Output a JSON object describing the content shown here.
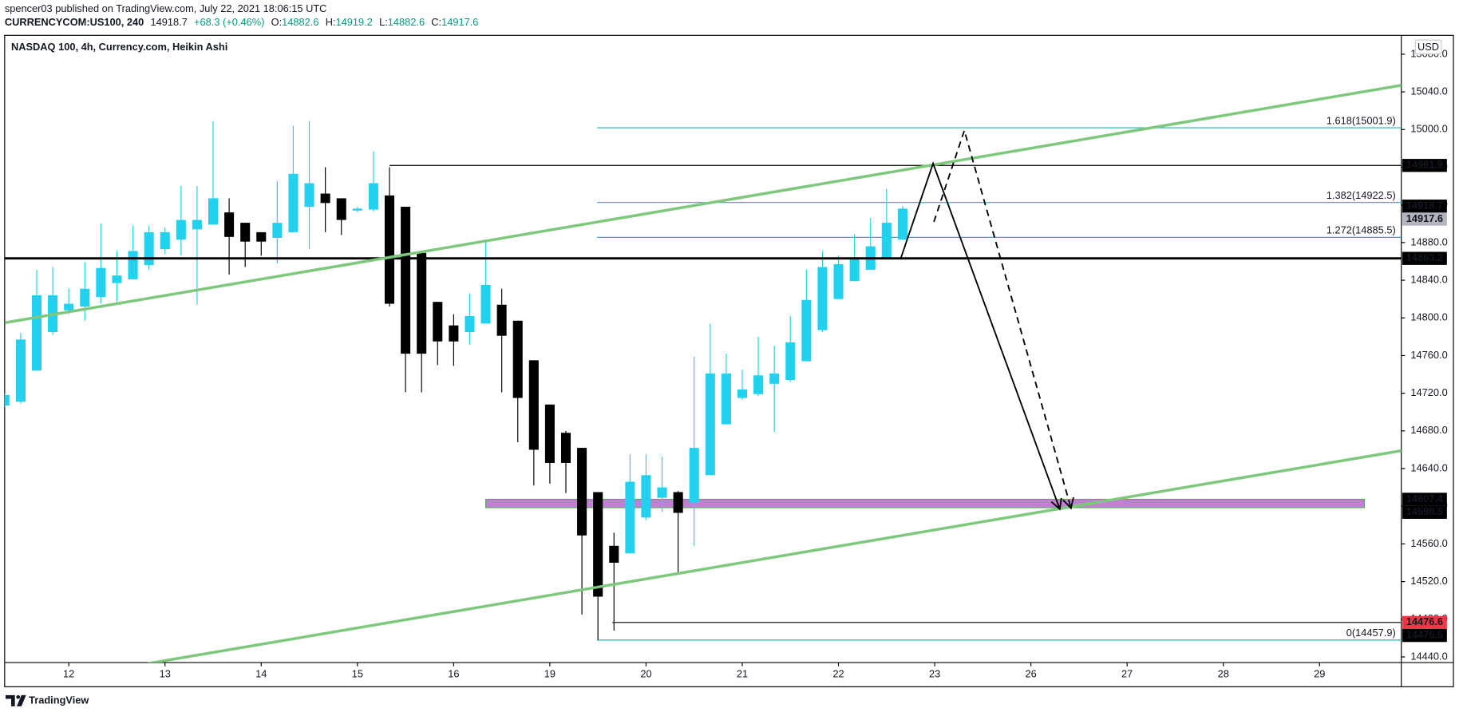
{
  "header": {
    "publisher": "spencer03 published on TradingView.com, July 22, 2021 18:06:15 UTC",
    "symbol": "CURRENCYCOM:US100, 240",
    "last": "14918.7",
    "change": "+68.3 (+0.46%)",
    "o_label": "O:",
    "o": "14882.6",
    "h_label": "H:",
    "h": "14919.2",
    "l_label": "L:",
    "l": "14882.6",
    "c_label": "C:",
    "c": "14917.6"
  },
  "chart_data": {
    "type": "candlestick",
    "title": "NASDAQ 100, 4h, Currency.com, Heikin Ashi",
    "currency": "USD",
    "open": [
      14707,
      14711,
      14744,
      14785,
      14808,
      14812,
      14822,
      14837,
      14841,
      14856,
      14873,
      14883,
      14894,
      14899,
      14912,
      14901,
      14891,
      14885,
      14891,
      14918,
      14932,
      14927,
      14914,
      14915,
      14930,
      14918,
      14869,
      14817,
      14792,
      14785,
      14794,
      14814,
      14797,
      14755,
      14708,
      14678,
      14662,
      14615,
      14558,
      14550,
      14588,
      14609,
      14615,
      14604,
      14633,
      14687,
      14715,
      14719,
      14730,
      14734,
      14754,
      14787,
      14820,
      14839,
      14851,
      14863,
      14883
    ],
    "high": [
      14720,
      14784,
      14851,
      14854,
      14831,
      14859,
      14900,
      14871,
      14898,
      14898,
      14896,
      14940,
      14940,
      15009,
      14927,
      14901,
      14891,
      14945,
      15004,
      15009,
      14960,
      14927,
      14918,
      14977,
      14960,
      14918,
      14869,
      14817,
      14804,
      14826,
      14883,
      14831,
      14797,
      14755,
      14708,
      14680,
      14662,
      14615,
      14572,
      14655,
      14655,
      14653,
      14616,
      14759,
      14794,
      14762,
      14745,
      14780,
      14770,
      14802,
      14851,
      14871,
      14866,
      14889,
      14906,
      14937,
      14919
    ],
    "low": [
      14705,
      14709,
      14744,
      14782,
      14804,
      14797,
      14815,
      14817,
      14841,
      14851,
      14868,
      14866,
      14814,
      14899,
      14846,
      14854,
      14866,
      14858,
      14891,
      14873,
      14891,
      14888,
      14912,
      14913,
      14812,
      14721,
      14721,
      14750,
      14749,
      14772,
      14794,
      14721,
      14668,
      14622,
      14624,
      14614,
      14485,
      14458,
      14468,
      14550,
      14585,
      14594,
      14528,
      14558,
      14633,
      14687,
      14713,
      14717,
      14679,
      14732,
      14754,
      14785,
      14820,
      14840,
      14851,
      14863,
      14883
    ],
    "close": [
      14718,
      14777,
      14824,
      14824,
      14815,
      14831,
      14853,
      14845,
      14871,
      14891,
      14891,
      14904,
      14904,
      14927,
      14886,
      14881,
      14881,
      14901,
      14953,
      14943,
      14922,
      14904,
      14916,
      14943,
      14815,
      14762,
      14762,
      14775,
      14775,
      14802,
      14835,
      14781,
      14715,
      14660,
      14646,
      14646,
      14569,
      14504,
      14540,
      14626,
      14633,
      14620,
      14593,
      14662,
      14741,
      14741,
      14724,
      14739,
      14741,
      14774,
      14819,
      14854,
      14857,
      14863,
      14876,
      14901,
      14916
    ],
    "up_color": "#22d1ee",
    "down_color": "#000000",
    "xlim": [
      0,
      87.1
    ],
    "xticks": [
      {
        "value": 4,
        "label": "12"
      },
      {
        "value": 10,
        "label": "13"
      },
      {
        "value": 16,
        "label": "14"
      },
      {
        "value": 22,
        "label": "15"
      },
      {
        "value": 28,
        "label": "16"
      },
      {
        "value": 34,
        "label": "19"
      },
      {
        "value": 40,
        "label": "20"
      },
      {
        "value": 46,
        "label": "21"
      },
      {
        "value": 52,
        "label": "22"
      },
      {
        "value": 58,
        "label": "23"
      },
      {
        "value": 64,
        "label": "26"
      },
      {
        "value": 70,
        "label": "27"
      },
      {
        "value": 76,
        "label": "28"
      },
      {
        "value": 82,
        "label": "29"
      }
    ],
    "ylim": [
      14434,
      15100
    ],
    "yticks": [
      {
        "value": 14440,
        "label": "14440.0"
      },
      {
        "value": 14480,
        "label": "14480.0"
      },
      {
        "value": 14520,
        "label": "14520.0"
      },
      {
        "value": 14560,
        "label": "14560.0"
      },
      {
        "value": 14600,
        "label": "14600.0"
      },
      {
        "value": 14640,
        "label": "14640.0"
      },
      {
        "value": 14680,
        "label": "14680.0"
      },
      {
        "value": 14720,
        "label": "14720.0"
      },
      {
        "value": 14760,
        "label": "14760.0"
      },
      {
        "value": 14800,
        "label": "14800.0"
      },
      {
        "value": 14840,
        "label": "14840.0"
      },
      {
        "value": 14880,
        "label": "14880.0"
      },
      {
        "value": 14920,
        "label": "14920.0"
      },
      {
        "value": 14960,
        "label": "14960.0"
      },
      {
        "value": 15000,
        "label": "15000.0"
      },
      {
        "value": 15040,
        "label": "15040.0"
      },
      {
        "value": 15080,
        "label": "15080.0"
      }
    ],
    "levels": [
      {
        "value": 14863.2,
        "x0": 0,
        "weight": "thick"
      },
      {
        "value": 14961.9,
        "x0": 24,
        "weight": "thin"
      },
      {
        "value": 14476.6,
        "x0": 37.9,
        "weight": "thin"
      }
    ],
    "fib_x0": 36.95,
    "fib_color": "#1cb5b0",
    "fib_levels": [
      {
        "value": 15001.9,
        "label": "1.618(15001.9)"
      },
      {
        "value": 14922.5,
        "label": "1.382(14922.5)"
      },
      {
        "value": 14885.5,
        "label": "1.272(14885.5)"
      },
      {
        "value": 14457.9,
        "label": "0(14457.9)"
      }
    ],
    "trend_color": "#7ec87e",
    "trendlines": [
      [
        [
          0.06,
          14795
        ],
        [
          87.1,
          15047
        ]
      ],
      [
        [
          8.93,
          14433
        ],
        [
          87.1,
          14659
        ]
      ]
    ],
    "zone": {
      "from": 30,
      "to": 84.8,
      "low": 14598.5,
      "high": 14607.4,
      "fill": "#c77dd8",
      "border": "#4caf50"
    },
    "projections": [
      {
        "points": [
          [
            55.9,
            14864
          ],
          [
            57.9,
            14964
          ],
          [
            65.8,
            14597
          ]
        ],
        "dashed": false
      },
      {
        "points": [
          [
            57.95,
            14902
          ],
          [
            59.85,
            14999
          ],
          [
            66.5,
            14598
          ]
        ],
        "dashed": true
      }
    ],
    "price_labels": [
      {
        "value": 14961.9,
        "bg": "#000000"
      },
      {
        "value": 14918.7,
        "bg": "#000000"
      },
      {
        "value": 14917.6,
        "bg": "#b2b5be"
      },
      {
        "value": 14863.2,
        "bg": "#000000"
      },
      {
        "value": 14607.4,
        "bg": "#000000"
      },
      {
        "value": 14598.5,
        "bg": "#000000"
      },
      {
        "value": 14476.6,
        "bg": "#f23645"
      },
      {
        "value": 14476.6,
        "bg": "#000000"
      }
    ]
  },
  "footer": {
    "brand": "TradingView"
  }
}
